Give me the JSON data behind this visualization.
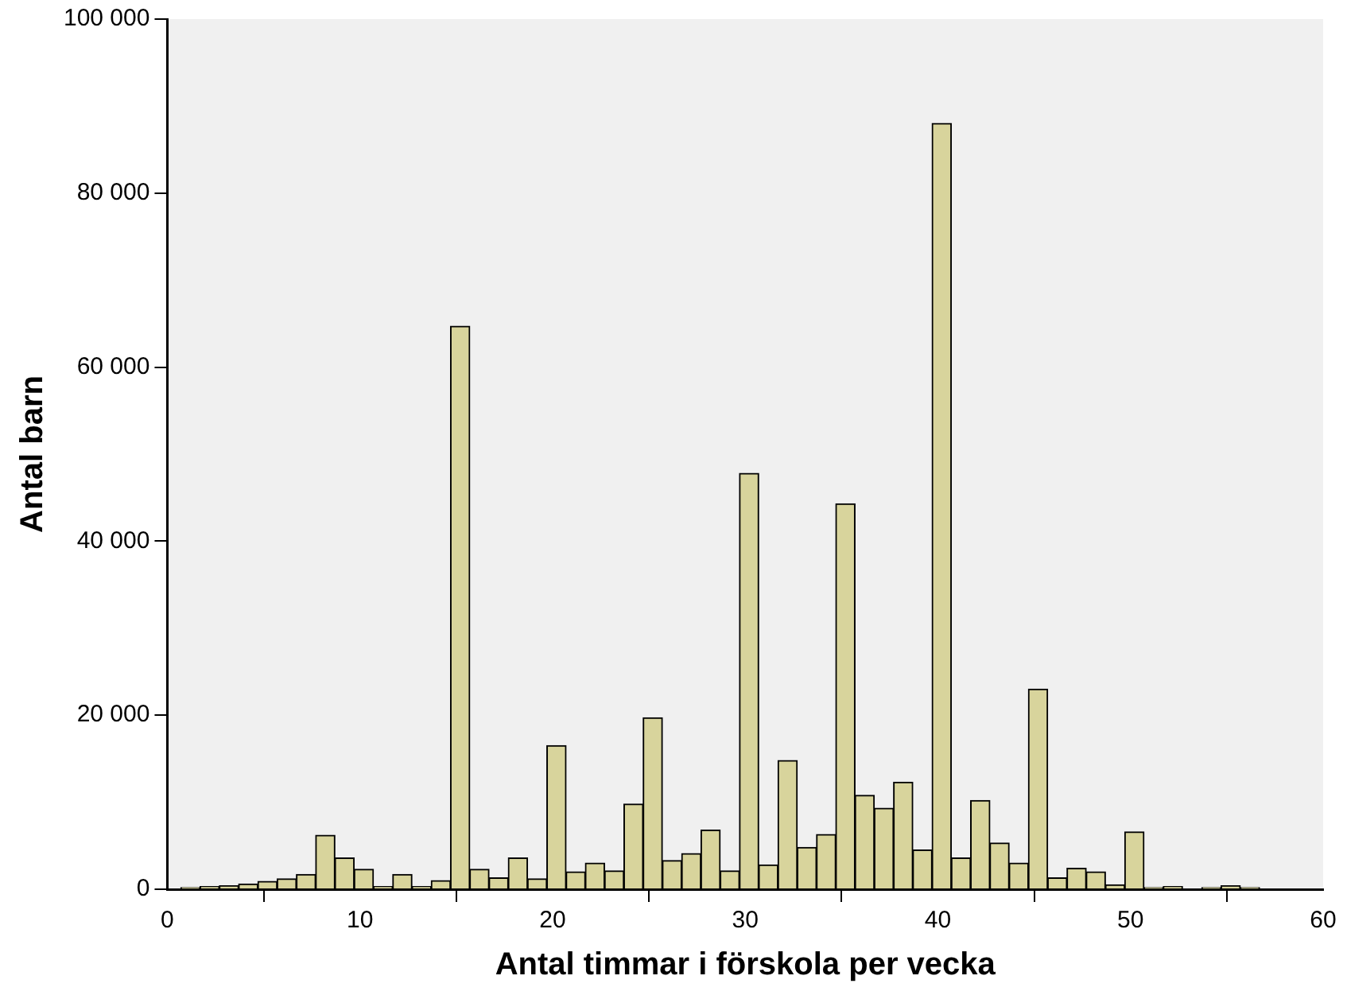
{
  "chart_data": {
    "type": "histogram",
    "xlabel": "Antal timmar i förskola per vecka",
    "ylabel": "Antal barn",
    "bins": [
      0.7,
      1.7,
      2.7,
      3.7,
      4.7,
      5.7,
      6.7,
      7.7,
      8.7,
      9.7,
      10.7,
      11.7,
      12.7,
      13.7,
      14.7,
      15.7,
      16.7,
      17.7,
      18.7,
      19.7,
      20.7,
      21.7,
      22.7,
      23.7,
      24.7,
      25.7,
      26.7,
      27.7,
      28.7,
      29.7,
      30.7,
      31.7,
      32.7,
      33.7,
      34.7,
      35.7,
      36.7,
      37.7,
      38.7,
      39.7,
      40.7,
      41.7,
      42.7,
      43.7,
      44.7,
      45.7,
      46.7,
      47.7,
      48.7,
      49.7,
      50.7,
      51.7,
      52.7,
      53.7,
      54.7,
      55.7,
      56.7,
      57.7,
      58.7,
      59.7
    ],
    "values": [
      200,
      300,
      400,
      600,
      900,
      1200,
      1700,
      6200,
      3600,
      2300,
      300,
      1700,
      300,
      1000,
      64700,
      2300,
      1300,
      3600,
      1200,
      16500,
      2000,
      3000,
      2100,
      9800,
      19700,
      3300,
      4100,
      6800,
      2100,
      47800,
      2800,
      14800,
      4800,
      6300,
      44300,
      10800,
      9300,
      12300,
      4500,
      88000,
      3600,
      10200,
      5300,
      3000,
      23000,
      1300,
      2400,
      2000,
      500,
      6600,
      200,
      300,
      null,
      200,
      400,
      200,
      null,
      null,
      null
    ],
    "color": "#d8d49c",
    "xlim": [
      0,
      60
    ],
    "xticks": [
      0,
      10,
      20,
      30,
      40,
      50,
      60
    ],
    "ylim": [
      0,
      100000
    ],
    "yticks": [
      {
        "value": 0,
        "label": "0"
      },
      {
        "value": 20000,
        "label": "20 000"
      },
      {
        "value": 40000,
        "label": "40 000"
      },
      {
        "value": 60000,
        "label": "60 000"
      },
      {
        "value": 80000,
        "label": "80 000"
      },
      {
        "value": 100000,
        "label": "100 000"
      }
    ],
    "grid": false,
    "legend": false
  }
}
